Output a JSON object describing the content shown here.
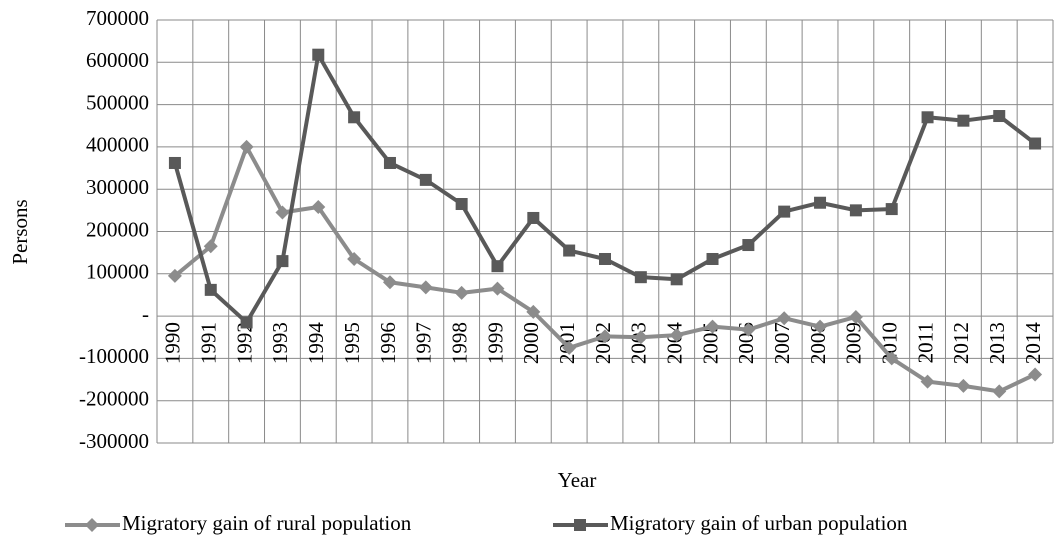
{
  "chart_data": {
    "type": "line",
    "x_label": "Year",
    "y_label": "Persons",
    "categories": [
      "1990",
      "1991",
      "1992",
      "1993",
      "1994",
      "1995",
      "1996",
      "1997",
      "1998",
      "1999",
      "2000",
      "2001",
      "2002",
      "2003",
      "2004",
      "2005",
      "2006",
      "2007",
      "2008",
      "2009",
      "2010",
      "2011",
      "2012",
      "2013",
      "2014"
    ],
    "series": [
      {
        "name": "Migratory gain of rural population",
        "color": "#8c8c8c",
        "marker": "diamond",
        "values": [
          95000,
          165000,
          400000,
          245000,
          258000,
          135000,
          80000,
          68000,
          55000,
          65000,
          10000,
          -75000,
          -48000,
          -50000,
          -45000,
          -25000,
          -32000,
          -5000,
          -25000,
          -2000,
          -100000,
          -155000,
          -165000,
          -178000,
          -138000
        ]
      },
      {
        "name": "Migratory gain of urban population",
        "color": "#595959",
        "marker": "square",
        "values": [
          362000,
          62000,
          -15000,
          130000,
          618000,
          470000,
          362000,
          322000,
          265000,
          118000,
          232000,
          155000,
          135000,
          92000,
          87000,
          135000,
          168000,
          247000,
          268000,
          250000,
          253000,
          470000,
          462000,
          473000,
          408000
        ]
      }
    ],
    "ylim": [
      -300000,
      700000
    ],
    "yticks": [
      -300000,
      -200000,
      -100000,
      {
        "value": 0,
        "label": "-"
      },
      100000,
      200000,
      300000,
      400000,
      500000,
      600000,
      700000
    ],
    "grid": true
  }
}
